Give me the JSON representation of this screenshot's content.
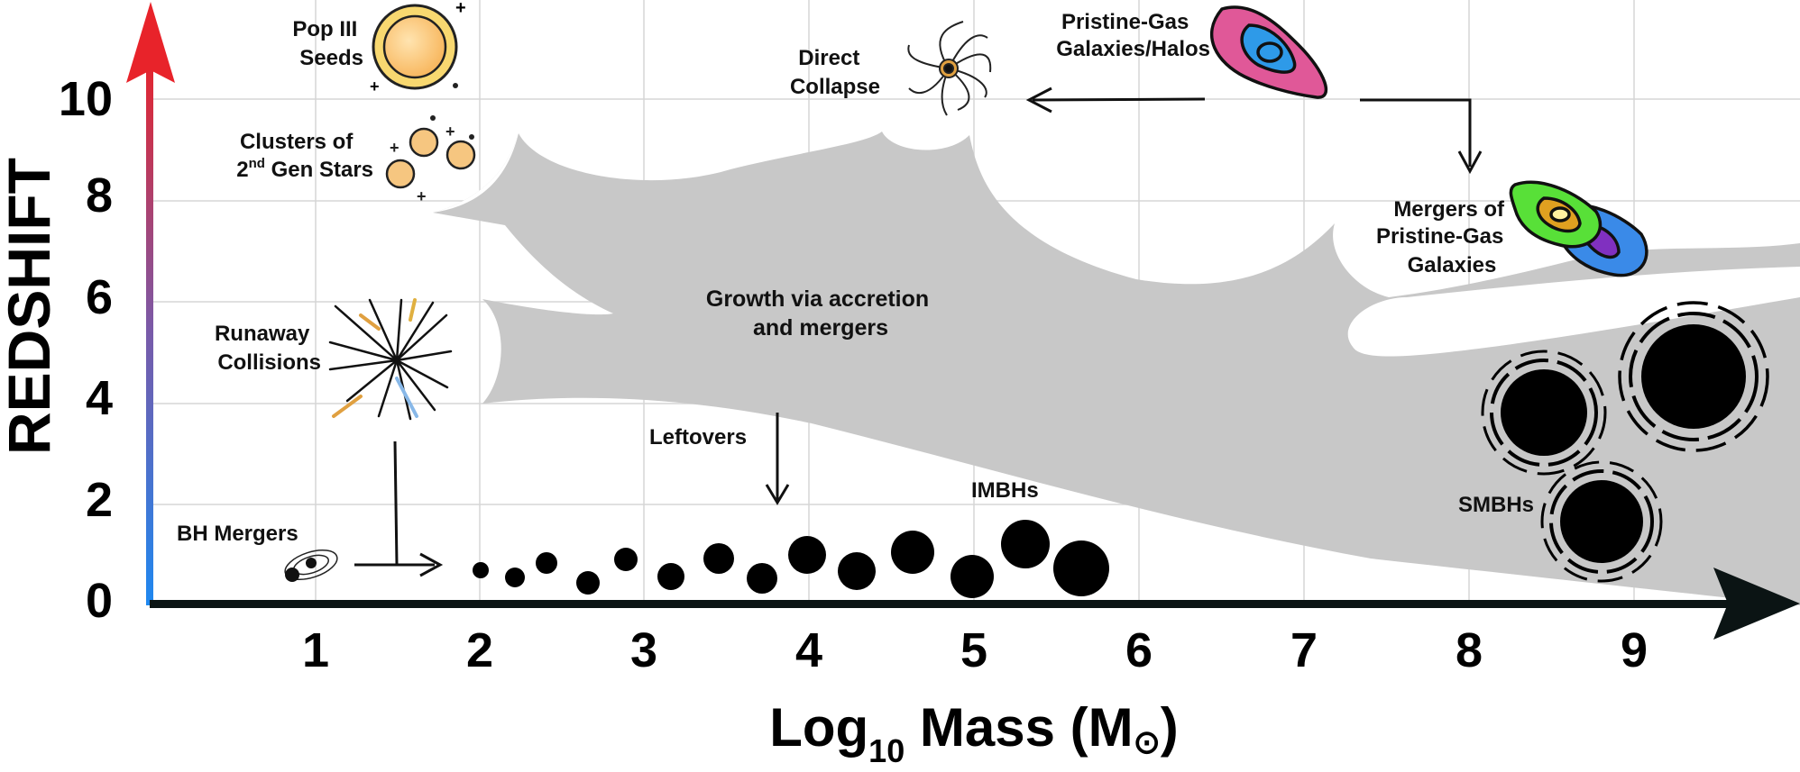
{
  "axes": {
    "x": {
      "title_prefix": "Log",
      "title_sub": "10",
      "title_main": " Mass (M",
      "title_sym": "⊙",
      "title_close": ")",
      "ticks": [
        "1",
        "2",
        "3",
        "4",
        "5",
        "6",
        "7",
        "8",
        "9"
      ]
    },
    "y": {
      "title": "REDSHIFT",
      "ticks": [
        "0",
        "2",
        "4",
        "6",
        "8",
        "10"
      ]
    }
  },
  "labels": {
    "pop3": [
      "Pop III",
      "Seeds"
    ],
    "clusters_line1": "Clusters of",
    "clusters_num": "2",
    "clusters_sup": "nd",
    "clusters_rest": " Gen Stars",
    "runaway": [
      "Runaway",
      "Collisions"
    ],
    "bh_mergers": "BH Mergers",
    "direct": [
      "Direct",
      "Collapse"
    ],
    "pristine": [
      "Pristine-Gas",
      "Galaxies/Halos"
    ],
    "mergers_pristine": [
      "Mergers of",
      "Pristine-Gas",
      "Galaxies"
    ],
    "growth": [
      "Growth via accretion",
      "and mergers"
    ],
    "leftovers": "Leftovers",
    "imbhs": "IMBHs",
    "smbhs": "SMBHs"
  },
  "colors": {
    "axis": "#0b1414",
    "shade": "#c8c8c8",
    "grid": "#d6d6d6",
    "arrow_top": "#e8232a",
    "arrow_bottom": "#1e88f0"
  }
}
